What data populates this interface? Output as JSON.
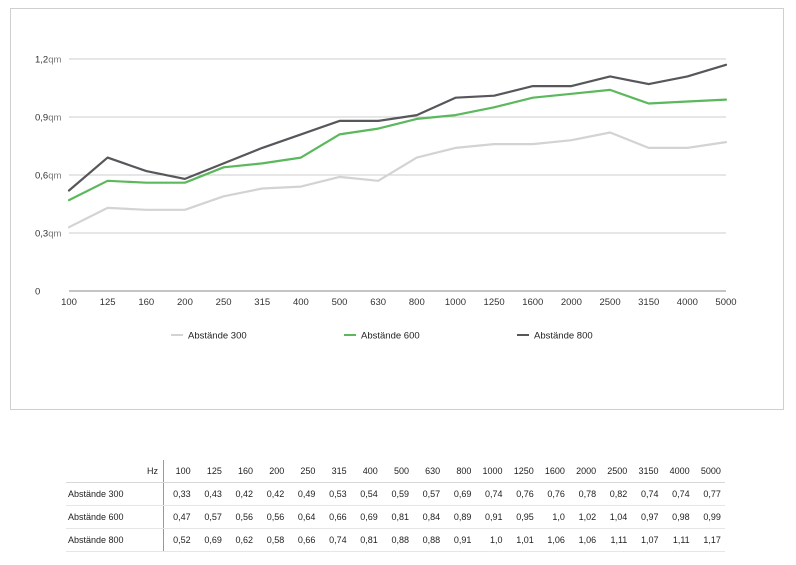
{
  "chart_data": {
    "type": "line",
    "categories": [
      "100",
      "125",
      "160",
      "200",
      "250",
      "315",
      "400",
      "500",
      "630",
      "800",
      "1000",
      "1250",
      "1600",
      "2000",
      "2500",
      "3150",
      "4000",
      "5000"
    ],
    "y_ticks": [
      "0",
      "0,3",
      "0,6",
      "0,9",
      "1,2"
    ],
    "y_unit": "qm",
    "ylim": [
      0,
      1.2
    ],
    "grid": true,
    "legend_position": "bottom",
    "series": [
      {
        "name": "Abstände 300",
        "color": "#d3d3d3",
        "values": [
          0.33,
          0.43,
          0.42,
          0.42,
          0.49,
          0.53,
          0.54,
          0.59,
          0.57,
          0.69,
          0.74,
          0.76,
          0.76,
          0.78,
          0.82,
          0.74,
          0.74,
          0.77
        ]
      },
      {
        "name": "Abstände 600",
        "color": "#5cb85c",
        "values": [
          0.47,
          0.57,
          0.56,
          0.56,
          0.64,
          0.66,
          0.69,
          0.81,
          0.84,
          0.89,
          0.91,
          0.95,
          1.0,
          1.02,
          1.04,
          0.97,
          0.98,
          0.99
        ]
      },
      {
        "name": "Abstände 800",
        "color": "#58565a",
        "values": [
          0.52,
          0.69,
          0.62,
          0.58,
          0.66,
          0.74,
          0.81,
          0.88,
          0.88,
          0.91,
          1.0,
          1.01,
          1.06,
          1.06,
          1.11,
          1.07,
          1.11,
          1.17
        ]
      }
    ]
  },
  "table": {
    "header_label": "Hz",
    "columns": [
      "100",
      "125",
      "160",
      "200",
      "250",
      "315",
      "400",
      "500",
      "630",
      "800",
      "1000",
      "1250",
      "1600",
      "2000",
      "2500",
      "3150",
      "4000",
      "5000"
    ],
    "rows": [
      {
        "label": "Abstände 300",
        "values": [
          "0,33",
          "0,43",
          "0,42",
          "0,42",
          "0,49",
          "0,53",
          "0,54",
          "0,59",
          "0,57",
          "0,69",
          "0,74",
          "0,76",
          "0,76",
          "0,78",
          "0,82",
          "0,74",
          "0,74",
          "0,77"
        ]
      },
      {
        "label": "Abstände 600",
        "values": [
          "0,47",
          "0,57",
          "0,56",
          "0,56",
          "0,64",
          "0,66",
          "0,69",
          "0,81",
          "0,84",
          "0,89",
          "0,91",
          "0,95",
          "1,0",
          "1,02",
          "1,04",
          "0,97",
          "0,98",
          "0,99"
        ]
      },
      {
        "label": "Abstände 800",
        "values": [
          "0,52",
          "0,69",
          "0,62",
          "0,58",
          "0,66",
          "0,74",
          "0,81",
          "0,88",
          "0,88",
          "0,91",
          "1,0",
          "1,01",
          "1,06",
          "1,06",
          "1,11",
          "1,07",
          "1,11",
          "1,17"
        ]
      }
    ]
  }
}
